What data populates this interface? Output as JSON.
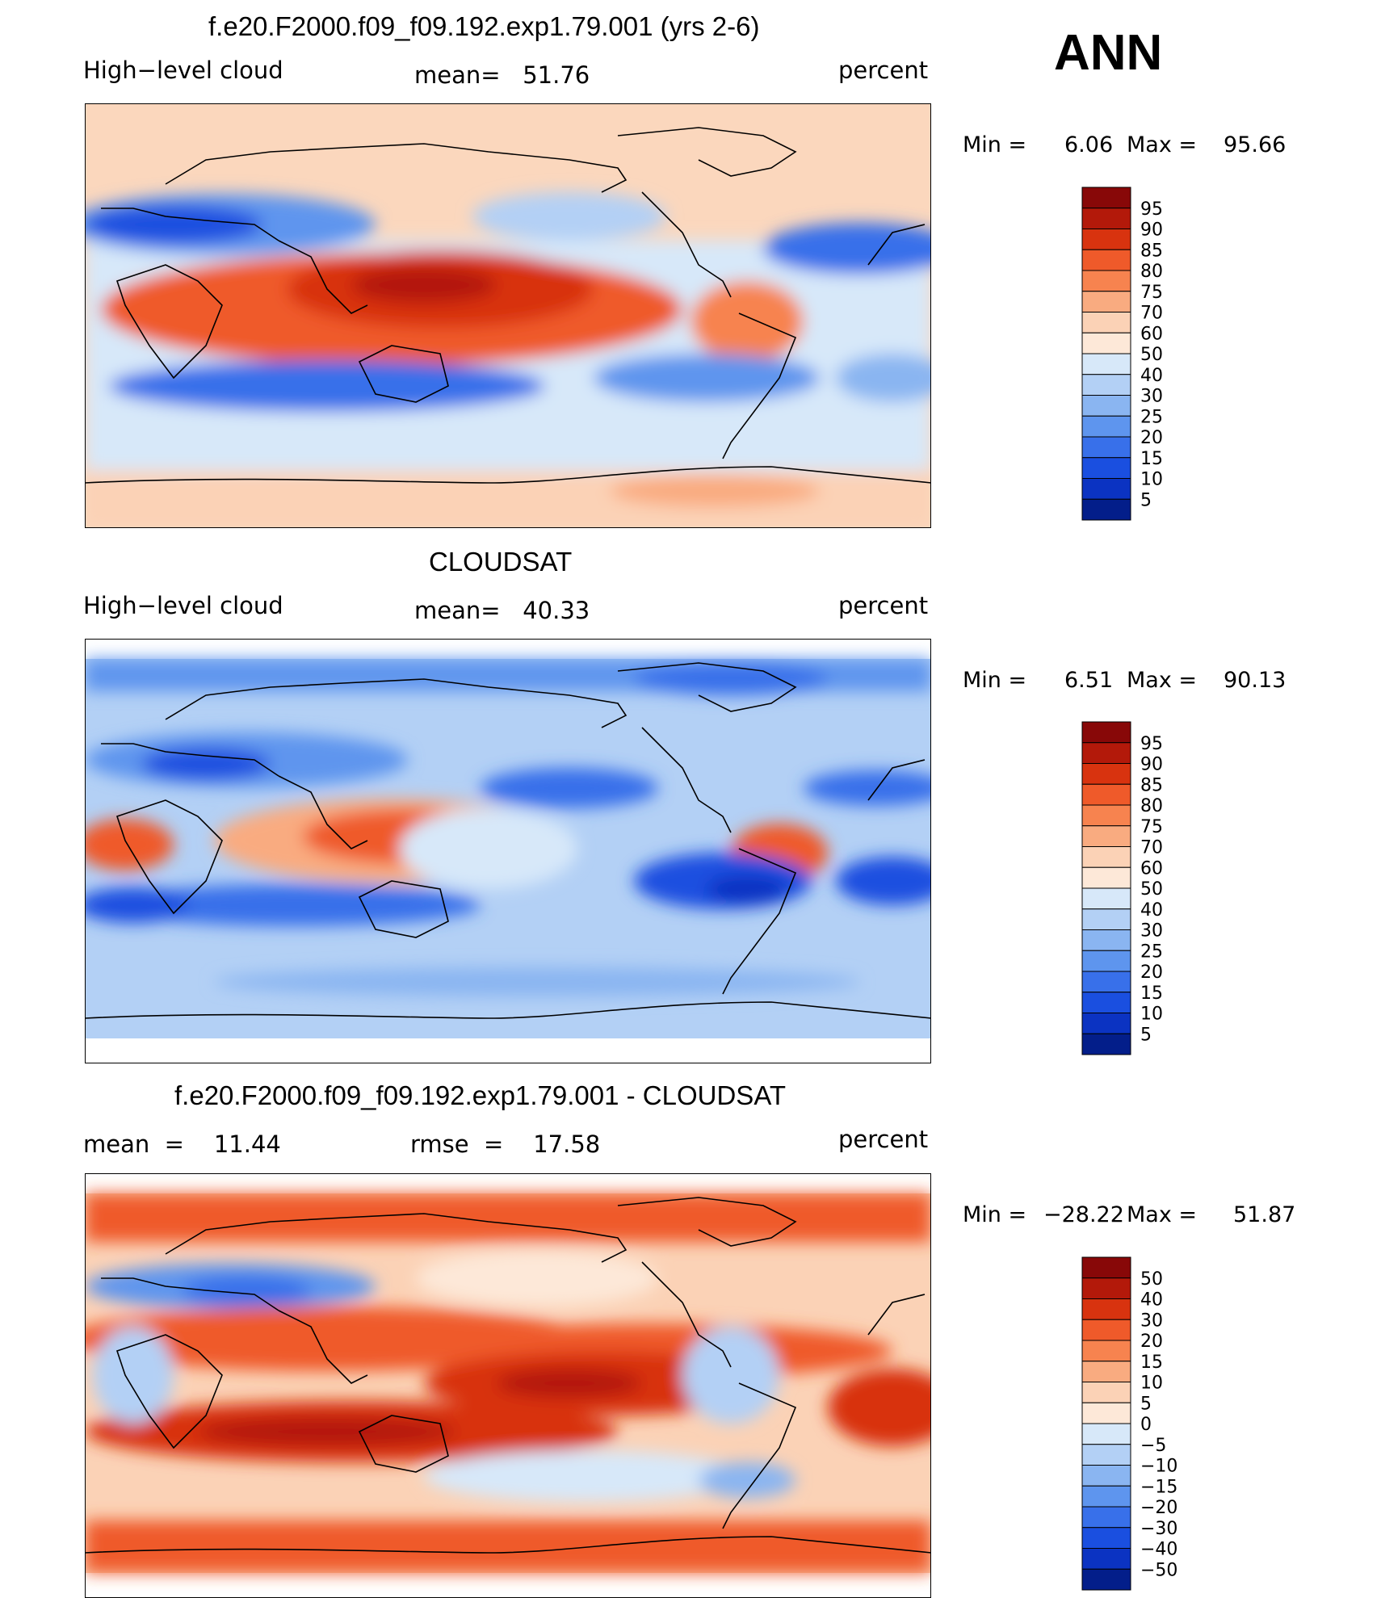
{
  "season": "ANN",
  "panels": [
    {
      "title": "f.e20.F2000.f09_f09.192.exp1.79.001 (yrs 2-6)",
      "left_label": "High−level cloud",
      "center_label": "mean=   51.76",
      "units": "percent",
      "min_label": "Min  =",
      "min_value": "6.06",
      "max_label": "Max  =",
      "max_value": "95.66",
      "colorbar_labels": [
        "95",
        "90",
        "85",
        "80",
        "75",
        "70",
        "60",
        "50",
        "40",
        "30",
        "25",
        "20",
        "15",
        "10",
        "5"
      ],
      "colorbar_colors": [
        "#880808",
        "#b3190a",
        "#d8330f",
        "#ef5a2a",
        "#f7834f",
        "#f9ab80",
        "#fbd2b6",
        "#fde8d8",
        "#d7e8f9",
        "#b3d0f5",
        "#8ab5f1",
        "#5e95ee",
        "#3870ea",
        "#1a4fe0",
        "#0b33c2",
        "#031e8a"
      ],
      "map_notes": [
        "tropical high cloud maximum over Maritime Continent",
        "subtropical cloud minima"
      ]
    },
    {
      "title": "CLOUDSAT",
      "left_label": "High−level cloud",
      "center_label": "mean=   40.33",
      "units": "percent",
      "min_label": "Min  =",
      "min_value": "6.51",
      "max_label": "Max  =",
      "max_value": "90.13",
      "colorbar_labels": [
        "95",
        "90",
        "85",
        "80",
        "75",
        "70",
        "60",
        "50",
        "40",
        "30",
        "25",
        "20",
        "15",
        "10",
        "5"
      ],
      "colorbar_colors": [
        "#880808",
        "#b3190a",
        "#d8330f",
        "#ef5a2a",
        "#f7834f",
        "#f9ab80",
        "#fbd2b6",
        "#fde8d8",
        "#d7e8f9",
        "#b3d0f5",
        "#8ab5f1",
        "#5e95ee",
        "#3870ea",
        "#1a4fe0",
        "#0b33c2",
        "#031e8a"
      ]
    },
    {
      "title": "f.e20.F2000.f09_f09.192.exp1.79.001 - CLOUDSAT",
      "left_label": "mean  =    11.44",
      "center_label": "rmse  =    17.58",
      "units": "percent",
      "min_label": "Min  =",
      "min_value": "−28.22",
      "max_label": "Max  =",
      "max_value": "51.87",
      "colorbar_labels": [
        "50",
        "40",
        "30",
        "20",
        "15",
        "10",
        "5",
        "0",
        "−5",
        "−10",
        "−15",
        "−20",
        "−30",
        "−40",
        "−50"
      ],
      "colorbar_colors": [
        "#880808",
        "#b3190a",
        "#d8330f",
        "#ef5a2a",
        "#f7834f",
        "#f9ab80",
        "#fbd2b6",
        "#fde8d8",
        "#d7e8f9",
        "#b3d0f5",
        "#8ab5f1",
        "#5e95ee",
        "#3870ea",
        "#1a4fe0",
        "#0b33c2",
        "#031e8a"
      ]
    }
  ]
}
